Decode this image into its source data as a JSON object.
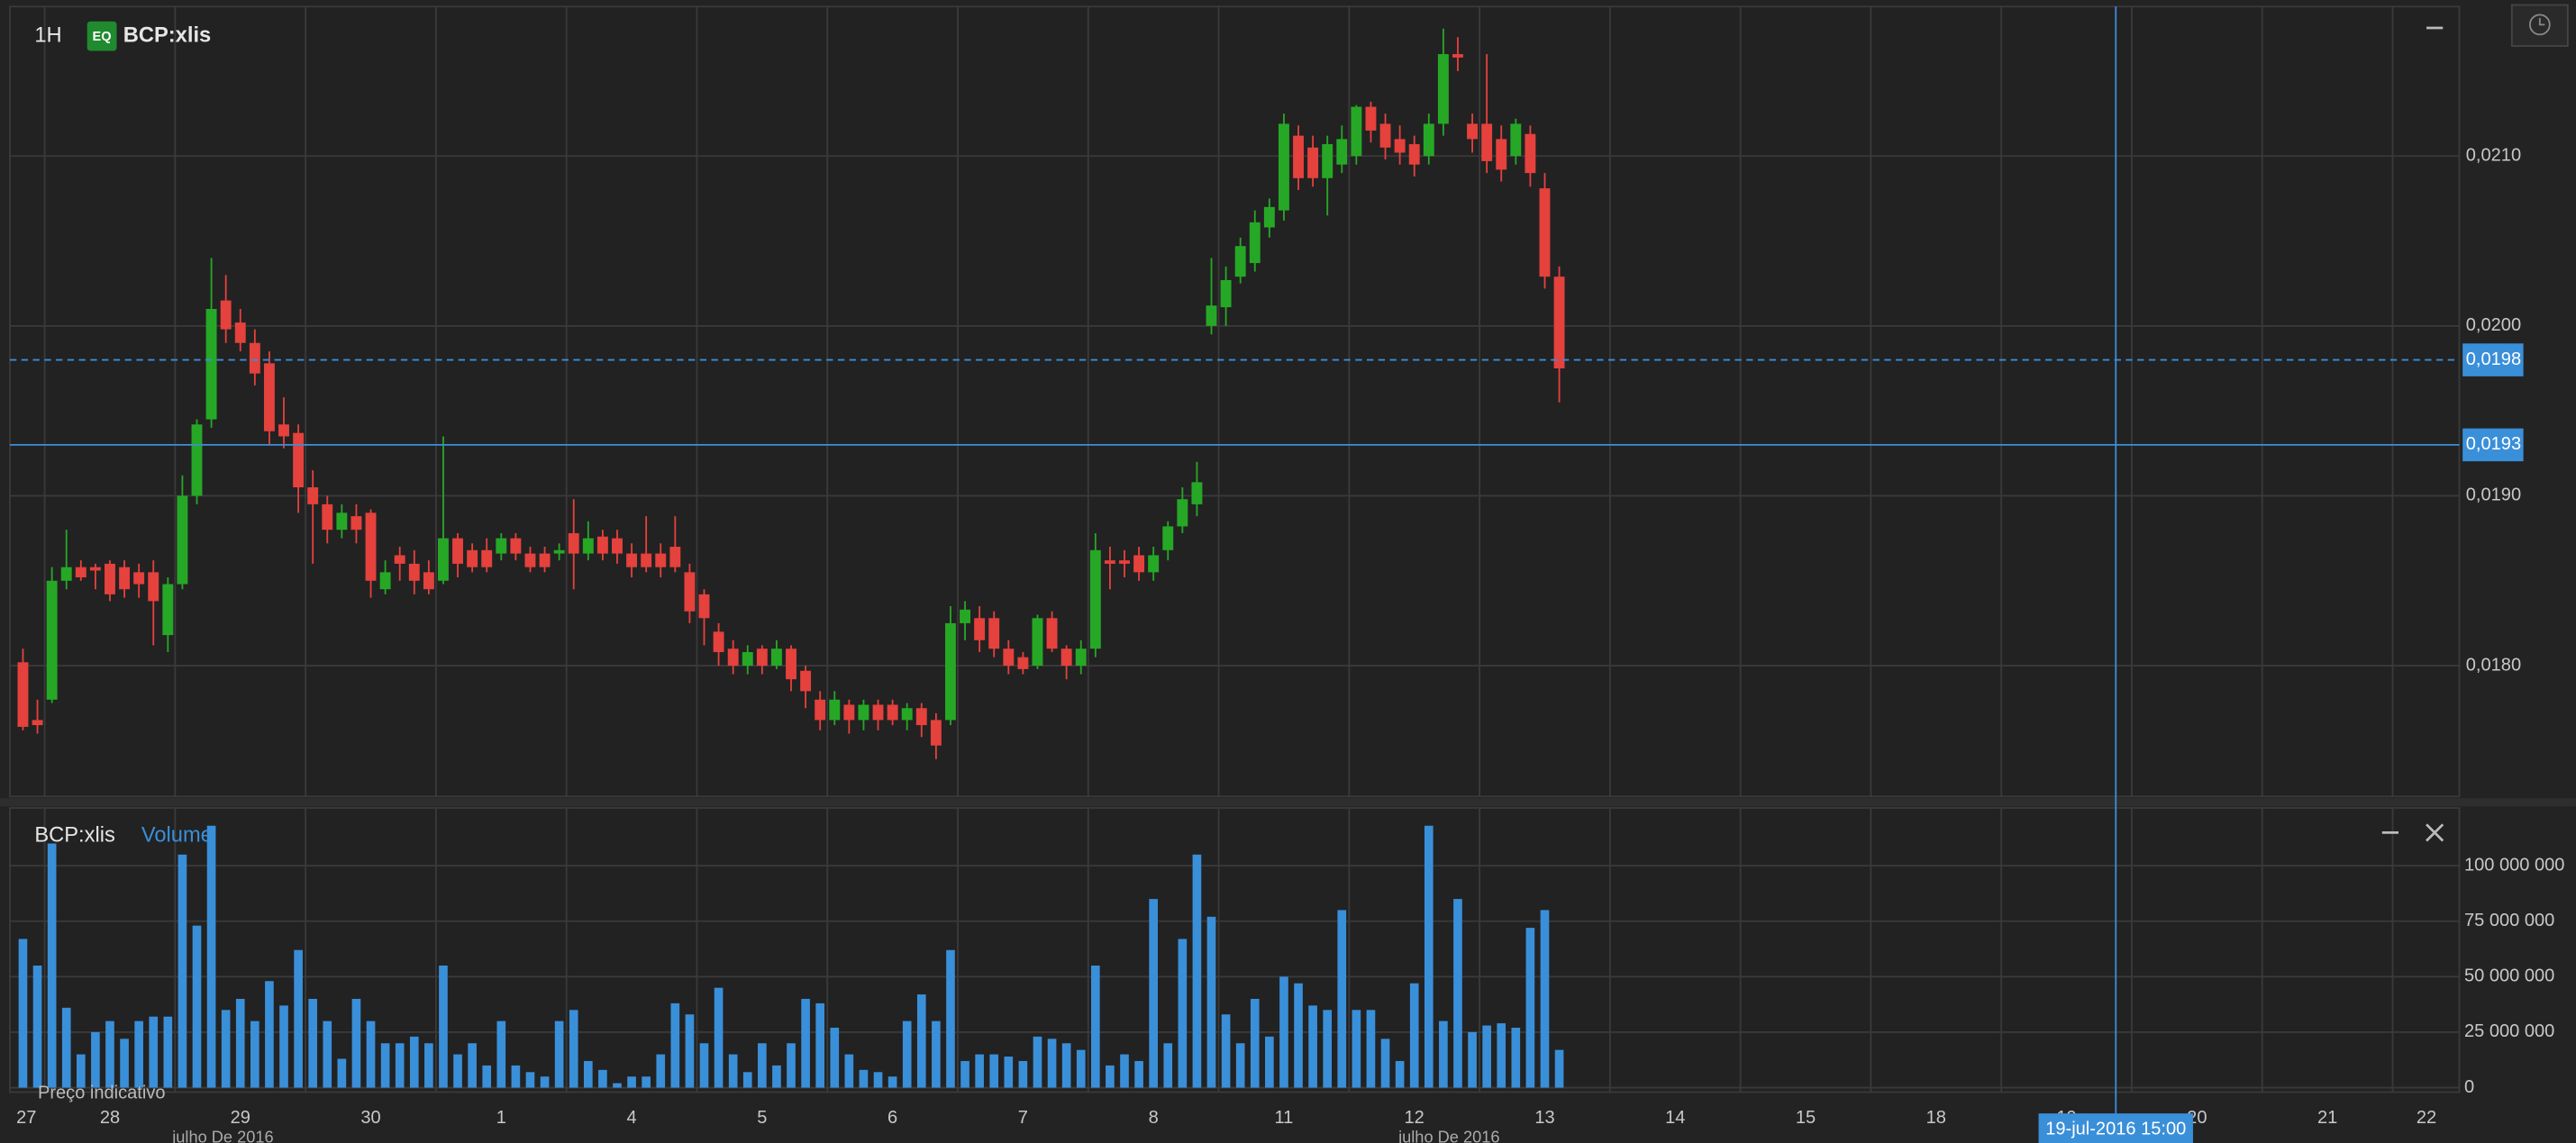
{
  "toolbar": {
    "interval": "1H",
    "badge": "EQ",
    "symbol": "BCP:xlis"
  },
  "x_axis": {
    "xlim": [
      -0.9,
      168.1
    ],
    "xticks": [
      {
        "value": -3,
        "label": "27"
      },
      {
        "value": 6,
        "label": "28"
      },
      {
        "value": 15,
        "label": "29"
      },
      {
        "value": 24,
        "label": "30"
      },
      {
        "value": 33,
        "label": "1"
      },
      {
        "value": 42,
        "label": "4"
      },
      {
        "value": 51,
        "label": "5"
      },
      {
        "value": 60,
        "label": "6"
      },
      {
        "value": 69,
        "label": "7"
      },
      {
        "value": 78,
        "label": "8"
      },
      {
        "value": 87,
        "label": "11"
      },
      {
        "value": 96,
        "label": "12"
      },
      {
        "value": 105,
        "label": "13"
      },
      {
        "value": 114,
        "label": "14"
      },
      {
        "value": 123,
        "label": "15"
      },
      {
        "value": 132,
        "label": "18"
      },
      {
        "value": 141,
        "label": "19"
      },
      {
        "value": 150,
        "label": "20"
      },
      {
        "value": 159,
        "label": "21"
      },
      {
        "value": 168,
        "label": "22"
      }
    ],
    "month_labels": [
      {
        "value": 13.8,
        "label": "julho De 2016"
      },
      {
        "value": 98.4,
        "label": "julho De 2016"
      }
    ],
    "crosshair": {
      "value": 144.4,
      "label": "19-jul-2016 15:00"
    }
  },
  "chart_data": [
    {
      "type": "candlestick",
      "up_color": "#26a826",
      "down_color": "#e5413d",
      "ylim": [
        0.01723,
        0.02188
      ],
      "yticks": [
        {
          "value": 0.018,
          "label": "0,0180"
        },
        {
          "value": 0.019,
          "label": "0,0190"
        },
        {
          "value": 0.02,
          "label": "0,0200"
        },
        {
          "value": 0.021,
          "label": "0,0210"
        }
      ],
      "last_price": {
        "value": 0.0198,
        "label": "0,0198"
      },
      "crosshair": {
        "value": 0.0193,
        "label": "0,0193"
      },
      "ohlc": [
        [
          0.01802,
          0.0181,
          0.01762,
          0.01764
        ],
        [
          0.01768,
          0.0178,
          0.0176,
          0.01765
        ],
        [
          0.0178,
          0.01858,
          0.01778,
          0.0185
        ],
        [
          0.0185,
          0.0188,
          0.01845,
          0.01858
        ],
        [
          0.01858,
          0.01862,
          0.0185,
          0.01852
        ],
        [
          0.01858,
          0.0186,
          0.01845,
          0.01856
        ],
        [
          0.0186,
          0.01862,
          0.01838,
          0.01842
        ],
        [
          0.01858,
          0.01862,
          0.0184,
          0.01845
        ],
        [
          0.01855,
          0.0186,
          0.0184,
          0.01848
        ],
        [
          0.01855,
          0.01862,
          0.01812,
          0.01838
        ],
        [
          0.01818,
          0.01852,
          0.01808,
          0.01848
        ],
        [
          0.01848,
          0.01912,
          0.01845,
          0.019
        ],
        [
          0.019,
          0.01945,
          0.01895,
          0.01942
        ],
        [
          0.01945,
          0.0204,
          0.0194,
          0.0201
        ],
        [
          0.02015,
          0.0203,
          0.0199,
          0.01998
        ],
        [
          0.02002,
          0.0201,
          0.01985,
          0.0199
        ],
        [
          0.0199,
          0.01998,
          0.01965,
          0.01972
        ],
        [
          0.01978,
          0.01985,
          0.0193,
          0.01938
        ],
        [
          0.01942,
          0.01958,
          0.01928,
          0.01935
        ],
        [
          0.01937,
          0.01942,
          0.0189,
          0.01905
        ],
        [
          0.01905,
          0.01915,
          0.0186,
          0.01895
        ],
        [
          0.01895,
          0.019,
          0.01872,
          0.0188
        ],
        [
          0.0188,
          0.01895,
          0.01875,
          0.0189
        ],
        [
          0.01888,
          0.01895,
          0.01872,
          0.0188
        ],
        [
          0.0189,
          0.01892,
          0.0184,
          0.0185
        ],
        [
          0.01845,
          0.01862,
          0.01842,
          0.01855
        ],
        [
          0.01865,
          0.0187,
          0.0185,
          0.0186
        ],
        [
          0.0186,
          0.01868,
          0.01842,
          0.0185
        ],
        [
          0.01855,
          0.01862,
          0.01842,
          0.01845
        ],
        [
          0.0185,
          0.01935,
          0.01848,
          0.01875
        ],
        [
          0.01875,
          0.01878,
          0.01852,
          0.0186
        ],
        [
          0.01868,
          0.01872,
          0.01855,
          0.01858
        ],
        [
          0.01868,
          0.01875,
          0.01855,
          0.01858
        ],
        [
          0.01866,
          0.01878,
          0.01862,
          0.01875
        ],
        [
          0.01875,
          0.01878,
          0.01862,
          0.01866
        ],
        [
          0.01866,
          0.0187,
          0.01855,
          0.01858
        ],
        [
          0.01866,
          0.0187,
          0.01855,
          0.01858
        ],
        [
          0.01866,
          0.01872,
          0.01862,
          0.01868
        ],
        [
          0.01878,
          0.01898,
          0.01845,
          0.01866
        ],
        [
          0.01866,
          0.01885,
          0.01862,
          0.01875
        ],
        [
          0.01876,
          0.0188,
          0.01862,
          0.01866
        ],
        [
          0.01875,
          0.0188,
          0.0186,
          0.01866
        ],
        [
          0.01866,
          0.01872,
          0.01852,
          0.01858
        ],
        [
          0.01866,
          0.01888,
          0.01855,
          0.01858
        ],
        [
          0.01866,
          0.01872,
          0.01852,
          0.01858
        ],
        [
          0.0187,
          0.01888,
          0.01855,
          0.01858
        ],
        [
          0.01855,
          0.0186,
          0.01825,
          0.01832
        ],
        [
          0.01842,
          0.01845,
          0.01812,
          0.01828
        ],
        [
          0.0182,
          0.01825,
          0.018,
          0.01808
        ],
        [
          0.0181,
          0.01815,
          0.01795,
          0.018
        ],
        [
          0.018,
          0.01812,
          0.01795,
          0.01808
        ],
        [
          0.0181,
          0.01812,
          0.01795,
          0.018
        ],
        [
          0.018,
          0.01815,
          0.01798,
          0.0181
        ],
        [
          0.0181,
          0.01812,
          0.01785,
          0.01792
        ],
        [
          0.01797,
          0.018,
          0.01775,
          0.01785
        ],
        [
          0.0178,
          0.01785,
          0.01762,
          0.01768
        ],
        [
          0.01768,
          0.01785,
          0.01765,
          0.0178
        ],
        [
          0.01777,
          0.0178,
          0.0176,
          0.01768
        ],
        [
          0.01768,
          0.0178,
          0.01762,
          0.01777
        ],
        [
          0.01777,
          0.0178,
          0.01762,
          0.01768
        ],
        [
          0.01777,
          0.0178,
          0.01765,
          0.01768
        ],
        [
          0.01768,
          0.01778,
          0.01762,
          0.01775
        ],
        [
          0.01775,
          0.01778,
          0.01758,
          0.01765
        ],
        [
          0.01768,
          0.01772,
          0.01745,
          0.01753
        ],
        [
          0.01768,
          0.01835,
          0.01765,
          0.01825
        ],
        [
          0.01825,
          0.01838,
          0.01815,
          0.01833
        ],
        [
          0.01828,
          0.01835,
          0.01808,
          0.01815
        ],
        [
          0.01828,
          0.01832,
          0.01805,
          0.0181
        ],
        [
          0.0181,
          0.01815,
          0.01795,
          0.018
        ],
        [
          0.01805,
          0.01808,
          0.01795,
          0.01798
        ],
        [
          0.018,
          0.0183,
          0.01798,
          0.01828
        ],
        [
          0.01828,
          0.01832,
          0.01808,
          0.0181
        ],
        [
          0.0181,
          0.01812,
          0.01792,
          0.018
        ],
        [
          0.018,
          0.01815,
          0.01795,
          0.0181
        ],
        [
          0.0181,
          0.01878,
          0.01805,
          0.01868
        ],
        [
          0.01862,
          0.0187,
          0.01845,
          0.0186
        ],
        [
          0.01862,
          0.01868,
          0.01852,
          0.0186
        ],
        [
          0.01865,
          0.0187,
          0.0185,
          0.01855
        ],
        [
          0.01855,
          0.0187,
          0.0185,
          0.01865
        ],
        [
          0.01868,
          0.01885,
          0.01862,
          0.01882
        ],
        [
          0.01882,
          0.01905,
          0.01878,
          0.01898
        ],
        [
          0.01895,
          0.0192,
          0.01888,
          0.01908
        ],
        [
          0.02,
          0.0204,
          0.01995,
          0.02012
        ],
        [
          0.02011,
          0.02035,
          0.02,
          0.02027
        ],
        [
          0.02029,
          0.02052,
          0.02025,
          0.02047
        ],
        [
          0.02037,
          0.02068,
          0.02032,
          0.02061
        ],
        [
          0.02058,
          0.02075,
          0.02052,
          0.0207
        ],
        [
          0.02068,
          0.02125,
          0.02062,
          0.02119
        ],
        [
          0.02112,
          0.02118,
          0.0208,
          0.02087
        ],
        [
          0.02105,
          0.02112,
          0.02082,
          0.02087
        ],
        [
          0.02087,
          0.02112,
          0.02065,
          0.02107
        ],
        [
          0.02095,
          0.02118,
          0.0209,
          0.0211
        ],
        [
          0.021,
          0.0213,
          0.02095,
          0.02129
        ],
        [
          0.02129,
          0.02132,
          0.02108,
          0.02115
        ],
        [
          0.02119,
          0.02125,
          0.02098,
          0.02105
        ],
        [
          0.0211,
          0.02118,
          0.02095,
          0.02102
        ],
        [
          0.02107,
          0.02112,
          0.02088,
          0.02095
        ],
        [
          0.021,
          0.02125,
          0.02095,
          0.02119
        ],
        [
          0.02119,
          0.02175,
          0.02112,
          0.0216
        ],
        [
          0.0216,
          0.0217,
          0.0215,
          0.02158
        ],
        [
          0.02119,
          0.02125,
          0.02102,
          0.0211
        ],
        [
          0.02119,
          0.0216,
          0.0209,
          0.02097
        ],
        [
          0.0211,
          0.02118,
          0.02085,
          0.02092
        ],
        [
          0.021,
          0.02122,
          0.02095,
          0.02119
        ],
        [
          0.02113,
          0.02118,
          0.02082,
          0.0209
        ],
        [
          0.02081,
          0.0209,
          0.02022,
          0.02029
        ],
        [
          0.02029,
          0.02035,
          0.01955,
          0.01975
        ]
      ]
    },
    {
      "type": "bar",
      "title": "BCP:xlis",
      "note": "Preço indicativo",
      "series": [
        {
          "name": "Volume",
          "color": "#3a8fd9",
          "values": [
            67000000,
            55000000,
            110000000,
            36000000,
            15000000,
            25000000,
            30000000,
            22000000,
            30000000,
            32000000,
            32000000,
            105000000,
            73000000,
            118000000,
            35000000,
            40000000,
            30000000,
            48000000,
            37000000,
            62000000,
            40000000,
            30000000,
            13000000,
            40000000,
            30000000,
            20000000,
            20000000,
            23000000,
            20000000,
            55000000,
            15000000,
            20000000,
            10000000,
            30000000,
            10000000,
            7000000,
            5000000,
            30000000,
            35000000,
            12000000,
            8000000,
            2000000,
            5000000,
            5000000,
            15000000,
            38000000,
            33000000,
            20000000,
            45000000,
            15000000,
            7000000,
            20000000,
            10000000,
            20000000,
            40000000,
            38000000,
            27000000,
            15000000,
            8000000,
            7000000,
            5000000,
            30000000,
            42000000,
            30000000,
            62000000,
            12000000,
            15000000,
            15000000,
            14000000,
            12000000,
            23000000,
            22000000,
            20000000,
            17000000,
            55000000,
            10000000,
            15000000,
            12000000,
            85000000,
            20000000,
            67000000,
            105000000,
            77000000,
            33000000,
            20000000,
            40000000,
            23000000,
            50000000,
            47000000,
            37000000,
            35000000,
            80000000,
            35000000,
            35000000,
            22000000,
            12000000,
            47000000,
            118000000,
            30000000,
            85000000,
            25000000,
            28000000,
            29000000,
            27000000,
            72000000,
            80000000,
            17000000
          ]
        }
      ],
      "ylim": [
        -2000000,
        126000000
      ],
      "yticks": [
        0,
        {
          "value": 25000000,
          "label": "25 000 000"
        },
        {
          "value": 50000000,
          "label": "50 000 000"
        },
        {
          "value": 75000000,
          "label": "75 000 000"
        },
        {
          "value": 100000000,
          "label": "100 000 000"
        }
      ]
    }
  ]
}
